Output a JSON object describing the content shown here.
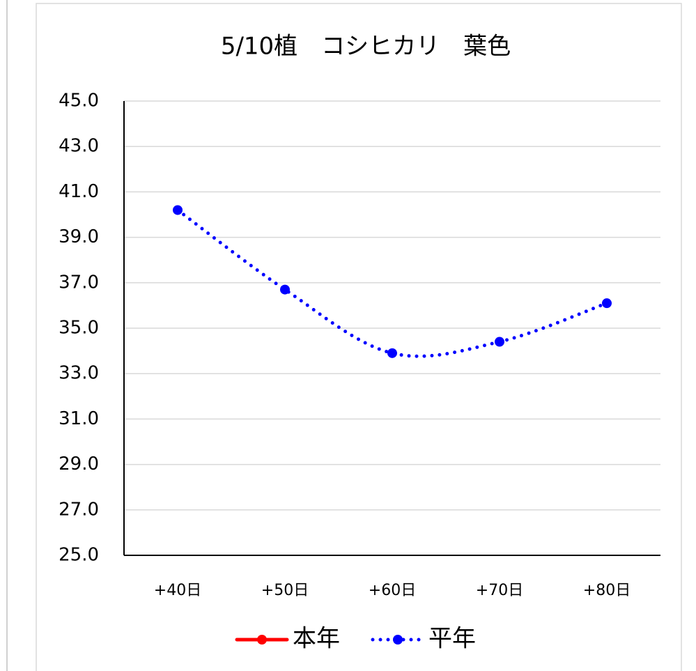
{
  "chart_data": {
    "type": "line",
    "title": "5/10植　コシヒカリ　葉色",
    "categories": [
      "+40日",
      "+50日",
      "+60日",
      "+70日",
      "+80日"
    ],
    "series": [
      {
        "name": "本年",
        "color": "#ff0000",
        "values": [
          null,
          null,
          null,
          null,
          null
        ]
      },
      {
        "name": "平年",
        "color": "#0000ff",
        "values": [
          40.2,
          36.7,
          33.9,
          34.4,
          36.1
        ]
      }
    ],
    "ylim": [
      25,
      45
    ],
    "yticks": [
      {
        "value": 25,
        "label": "25.0"
      },
      {
        "value": 27,
        "label": "27.0"
      },
      {
        "value": 29,
        "label": "29.0"
      },
      {
        "value": 31,
        "label": "31.0"
      },
      {
        "value": 33,
        "label": "33.0"
      },
      {
        "value": 35,
        "label": "35.0"
      },
      {
        "value": 37,
        "label": "37.0"
      },
      {
        "value": 39,
        "label": "39.0"
      },
      {
        "value": 41,
        "label": "41.0"
      },
      {
        "value": 43,
        "label": "43.0"
      },
      {
        "value": 45,
        "label": "45.0"
      }
    ],
    "grid": true,
    "legend": "bottom",
    "smooth": true
  }
}
